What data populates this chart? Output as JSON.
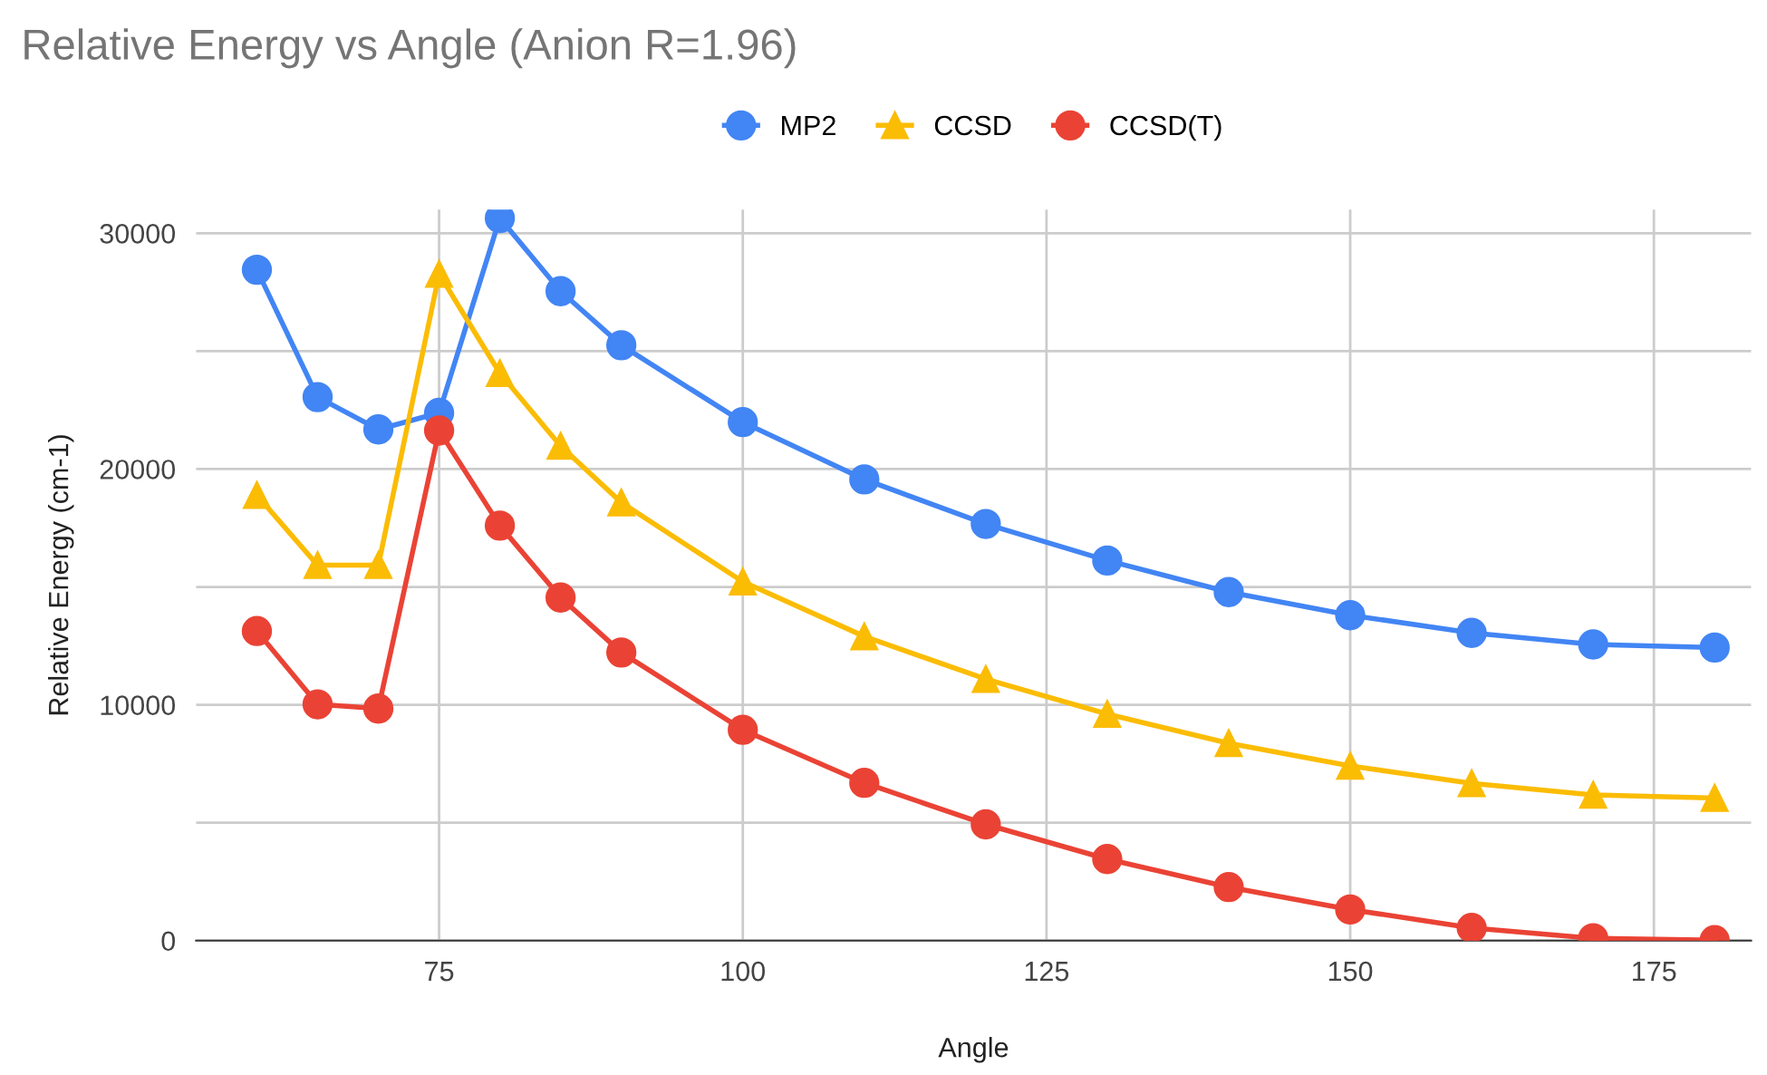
{
  "chart_data": {
    "type": "line",
    "title": "Relative Energy vs Angle (Anion R=1.96)",
    "xlabel": "Angle",
    "ylabel": "Relative Energy (cm-1)",
    "x": [
      60,
      65,
      70,
      75,
      80,
      85,
      90,
      100,
      110,
      120,
      130,
      140,
      150,
      160,
      170,
      180
    ],
    "series": [
      {
        "name": "MP2",
        "color": "#4285f4",
        "marker": "circle",
        "values": [
          28450,
          23050,
          21680,
          22380,
          30640,
          27540,
          25250,
          21990,
          19560,
          17670,
          16120,
          14780,
          13800,
          13050,
          12560,
          12430
        ]
      },
      {
        "name": "CCSD",
        "color": "#fbbc04",
        "marker": "triangle",
        "values": [
          18890,
          15920,
          15920,
          28270,
          24060,
          20980,
          18580,
          15220,
          12900,
          11090,
          9610,
          8370,
          7410,
          6670,
          6180,
          6050
        ]
      },
      {
        "name": "CCSD(T)",
        "color": "#ea4335",
        "marker": "circle",
        "values": [
          13130,
          10020,
          9840,
          21630,
          17600,
          14550,
          12220,
          8940,
          6690,
          4930,
          3460,
          2270,
          1320,
          540,
          100,
          20
        ]
      }
    ],
    "xlim": [
      55,
      183
    ],
    "xticks": [
      75,
      100,
      125,
      150,
      175
    ],
    "ylim": [
      0,
      31000
    ],
    "yticks": [
      0,
      {
        "value": 5000,
        "label": null
      },
      10000,
      {
        "value": 15000,
        "label": null
      },
      20000,
      {
        "value": 25000,
        "label": null
      },
      30000
    ],
    "grid": true,
    "legend": "top"
  }
}
